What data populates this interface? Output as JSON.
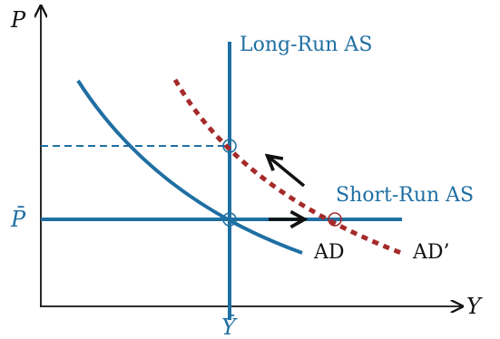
{
  "axes": {
    "y_label": "P",
    "x_label": "Y",
    "p_bar_label": "P̄",
    "y_bar_label": "Ȳ"
  },
  "curves": {
    "long_run_as": "Long-Run AS",
    "short_run_as": "Short-Run AS",
    "ad": "AD",
    "ad_prime": "AD’"
  },
  "colors": {
    "blue": "#1f6fa3",
    "dark_red": "#a52a2a",
    "black": "#111111"
  },
  "icons": {
    "shift_right": "arrow-right-icon",
    "price_adjust": "arrow-up-left-icon"
  }
}
